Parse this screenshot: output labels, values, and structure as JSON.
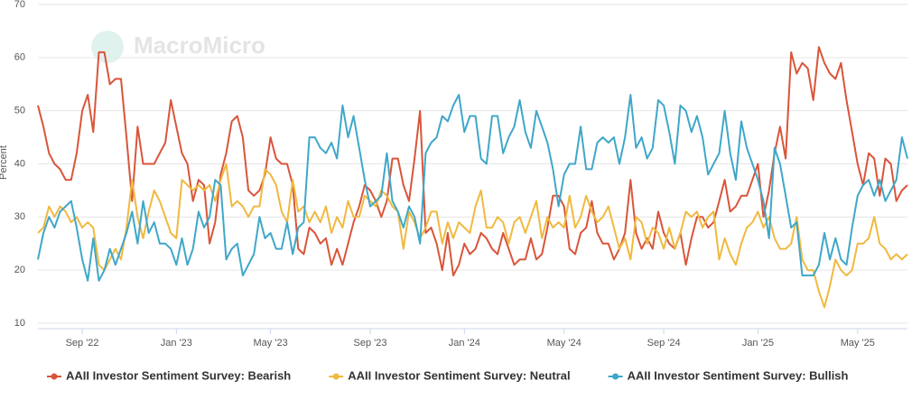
{
  "chart_data": {
    "type": "line",
    "watermark": "MacroMicro",
    "y_label": "Percent",
    "categories": [
      null,
      null,
      null,
      null,
      null,
      null,
      null,
      null,
      "Sep '22",
      null,
      null,
      null,
      null,
      null,
      null,
      null,
      null,
      null,
      null,
      null,
      null,
      null,
      null,
      null,
      null,
      "Jan '23",
      null,
      null,
      null,
      null,
      null,
      null,
      null,
      null,
      null,
      null,
      null,
      null,
      null,
      null,
      null,
      null,
      "May '23",
      null,
      null,
      null,
      null,
      null,
      null,
      null,
      null,
      null,
      null,
      null,
      null,
      null,
      null,
      null,
      null,
      null,
      "Sep '23",
      null,
      null,
      null,
      null,
      null,
      null,
      null,
      null,
      null,
      null,
      null,
      null,
      null,
      null,
      null,
      null,
      "Jan '24",
      null,
      null,
      null,
      null,
      null,
      null,
      null,
      null,
      null,
      null,
      null,
      null,
      null,
      null,
      null,
      null,
      null,
      "May '24",
      null,
      null,
      null,
      null,
      null,
      null,
      null,
      null,
      null,
      null,
      null,
      null,
      null,
      null,
      null,
      null,
      null,
      "Sep '24",
      null,
      null,
      null,
      null,
      null,
      null,
      null,
      null,
      null,
      null,
      null,
      null,
      null,
      null,
      null,
      null,
      "Jan '25",
      null,
      null,
      null,
      null,
      null,
      null,
      null,
      null,
      null,
      null,
      null,
      null,
      null,
      null,
      null,
      null,
      null,
      "May '25",
      null,
      null,
      null,
      null,
      null,
      null,
      null,
      null,
      null
    ],
    "series": [
      {
        "name": "AAII Investor Sentiment Survey: Bearish",
        "color": "#d9553a",
        "values": [
          51,
          47,
          42,
          40,
          39,
          37,
          37,
          42,
          50,
          53,
          46,
          61,
          61,
          55,
          56,
          56,
          45,
          33,
          47,
          40,
          40,
          40,
          42,
          44,
          52,
          47,
          42,
          40,
          33,
          37,
          36,
          25,
          29,
          38,
          42,
          48,
          49,
          45,
          35,
          34,
          35,
          38,
          45,
          41,
          40,
          40,
          36,
          24,
          23,
          28,
          27,
          25,
          26,
          21,
          24,
          21,
          25,
          29,
          32,
          36,
          35,
          33,
          30,
          33,
          41,
          41,
          36,
          33,
          41,
          50,
          27,
          28,
          25,
          20,
          27,
          19,
          21,
          25,
          23,
          24,
          27,
          26,
          24,
          23,
          27,
          24,
          21,
          22,
          22,
          26,
          22,
          23,
          28,
          34,
          34,
          32,
          24,
          23,
          27,
          28,
          33,
          27,
          25,
          25,
          22,
          24,
          27,
          37,
          27,
          24,
          26,
          24,
          31,
          27,
          25,
          24,
          27,
          21,
          26,
          30,
          30,
          28,
          29,
          33,
          37,
          31,
          32,
          34,
          34,
          37,
          40,
          30,
          35,
          42,
          47,
          41,
          61,
          57,
          59,
          58,
          52,
          62,
          59,
          57,
          56,
          59,
          52,
          46,
          40,
          36,
          42,
          41,
          34,
          41,
          40,
          33,
          35,
          36
        ]
      },
      {
        "name": "AAII Investor Sentiment Survey: Neutral",
        "color": "#f0b93f",
        "values": [
          27,
          28,
          32,
          30,
          32,
          31,
          29,
          30,
          28,
          29,
          28,
          21,
          20,
          22,
          24,
          22,
          28,
          37,
          30,
          26,
          31,
          35,
          33,
          30,
          27,
          26,
          37,
          36,
          35,
          36,
          35,
          36,
          33,
          37,
          40,
          32,
          33,
          32,
          30,
          32,
          32,
          39,
          38,
          36,
          31,
          29,
          37,
          31,
          32,
          29,
          31,
          29,
          32,
          27,
          30,
          28,
          33,
          30,
          30,
          34,
          33,
          32,
          35,
          34,
          32,
          31,
          24,
          31,
          29,
          26,
          28,
          31,
          31,
          25,
          29,
          26,
          29,
          28,
          27,
          32,
          35,
          28,
          28,
          30,
          29,
          25,
          29,
          30,
          27,
          30,
          33,
          26,
          30,
          28,
          29,
          28,
          34,
          28,
          30,
          34,
          31,
          29,
          30,
          32,
          28,
          24,
          26,
          22,
          30,
          29,
          25,
          28,
          27,
          24,
          28,
          24,
          27,
          31,
          30,
          31,
          28,
          30,
          31,
          22,
          26,
          23,
          21,
          25,
          28,
          29,
          31,
          28,
          30,
          26,
          24,
          24,
          25,
          30,
          22,
          20,
          20,
          16,
          13,
          17,
          22,
          20,
          19,
          20,
          25,
          25,
          26,
          30,
          25,
          24,
          22,
          23,
          22,
          23
        ]
      },
      {
        "name": "AAII Investor Sentiment Survey: Bullish",
        "color": "#3fa7c9",
        "values": [
          22,
          27,
          30,
          28,
          31,
          32,
          33,
          28,
          22,
          18,
          26,
          18,
          20,
          24,
          21,
          24,
          27,
          31,
          25,
          33,
          27,
          29,
          25,
          25,
          24,
          21,
          26,
          21,
          24,
          31,
          28,
          30,
          37,
          36,
          22,
          24,
          25,
          19,
          21,
          23,
          30,
          26,
          27,
          24,
          24,
          29,
          23,
          28,
          29,
          45,
          45,
          43,
          42,
          44,
          41,
          51,
          45,
          49,
          43,
          37,
          32,
          33,
          34,
          42,
          33,
          31,
          28,
          32,
          30,
          25,
          42,
          44,
          45,
          49,
          48,
          51,
          53,
          46,
          49,
          49,
          41,
          40,
          49,
          49,
          42,
          45,
          47,
          52,
          46,
          43,
          50,
          47,
          44,
          39,
          32,
          38,
          40,
          40,
          47,
          39,
          39,
          44,
          45,
          44,
          45,
          40,
          45,
          53,
          43,
          45,
          41,
          43,
          52,
          51,
          46,
          40,
          51,
          50,
          46,
          49,
          45,
          38,
          40,
          42,
          50,
          42,
          37,
          48,
          43,
          40,
          37,
          33,
          26,
          43,
          40,
          34,
          28,
          29,
          19,
          19,
          19,
          21,
          27,
          22,
          26,
          22,
          21,
          28,
          34,
          36,
          37,
          34,
          37,
          33,
          35,
          37,
          45,
          41
        ]
      }
    ],
    "ylim": [
      10,
      70
    ],
    "yticks": [
      10,
      20,
      30,
      40,
      50,
      60,
      70
    ],
    "grid": true,
    "legend": "bottom"
  }
}
